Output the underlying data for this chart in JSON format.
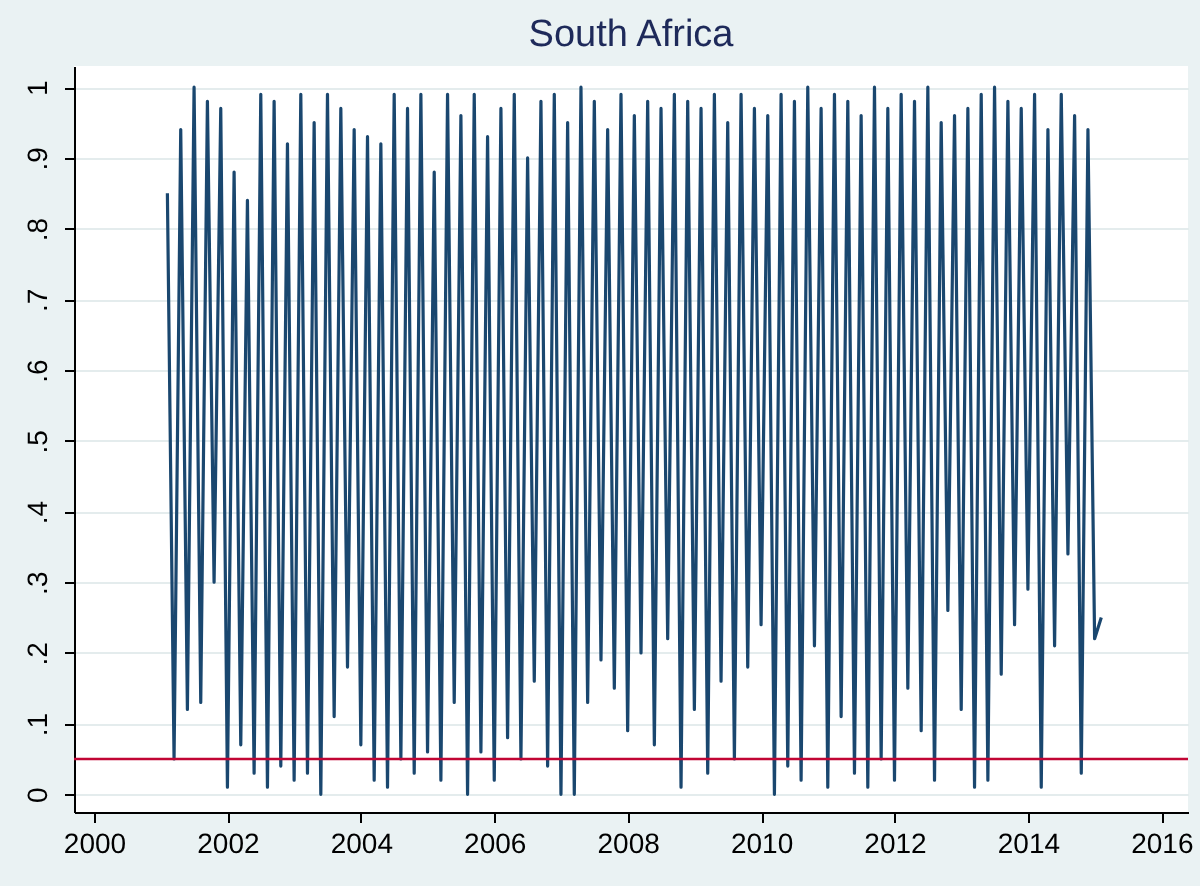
{
  "chart_data": {
    "type": "line",
    "title": "South Africa",
    "x": [
      2001.1,
      2001.2,
      2001.3,
      2001.4,
      2001.5,
      2001.6,
      2001.7,
      2001.8,
      2001.9,
      2002.0,
      2002.1,
      2002.2,
      2002.3,
      2002.4,
      2002.5,
      2002.6,
      2002.7,
      2002.8,
      2002.9,
      2003.0,
      2003.1,
      2003.2,
      2003.3,
      2003.4,
      2003.5,
      2003.6,
      2003.7,
      2003.8,
      2003.9,
      2004.0,
      2004.1,
      2004.2,
      2004.3,
      2004.4,
      2004.5,
      2004.6,
      2004.7,
      2004.8,
      2004.9,
      2005.0,
      2005.1,
      2005.2,
      2005.3,
      2005.4,
      2005.5,
      2005.6,
      2005.7,
      2005.8,
      2005.9,
      2006.0,
      2006.1,
      2006.2,
      2006.3,
      2006.4,
      2006.5,
      2006.6,
      2006.7,
      2006.8,
      2006.9,
      2007.0,
      2007.1,
      2007.2,
      2007.3,
      2007.4,
      2007.5,
      2007.6,
      2007.7,
      2007.8,
      2007.9,
      2008.0,
      2008.1,
      2008.2,
      2008.3,
      2008.4,
      2008.5,
      2008.6,
      2008.7,
      2008.8,
      2008.9,
      2009.0,
      2009.1,
      2009.2,
      2009.3,
      2009.4,
      2009.5,
      2009.6,
      2009.7,
      2009.8,
      2009.9,
      2010.0,
      2010.1,
      2010.2,
      2010.3,
      2010.4,
      2010.5,
      2010.6,
      2010.7,
      2010.8,
      2010.9,
      2011.0,
      2011.1,
      2011.2,
      2011.3,
      2011.4,
      2011.5,
      2011.6,
      2011.7,
      2011.8,
      2011.9,
      2012.0,
      2012.1,
      2012.2,
      2012.3,
      2012.4,
      2012.5,
      2012.6,
      2012.7,
      2012.8,
      2012.9,
      2013.0,
      2013.1,
      2013.2,
      2013.3,
      2013.4,
      2013.5,
      2013.6,
      2013.7,
      2013.8,
      2013.9,
      2014.0,
      2014.1,
      2014.2,
      2014.3,
      2014.4,
      2014.5,
      2014.6,
      2014.7,
      2014.8,
      2014.9,
      2015.0,
      2015.1
    ],
    "series": [
      {
        "color": "#1a476f",
        "values": [
          0.85,
          0.05,
          0.94,
          0.12,
          1.0,
          0.13,
          0.98,
          0.3,
          0.97,
          0.01,
          0.88,
          0.07,
          0.84,
          0.03,
          0.99,
          0.01,
          0.98,
          0.04,
          0.92,
          0.02,
          0.99,
          0.03,
          0.95,
          0.0,
          0.99,
          0.11,
          0.97,
          0.18,
          0.94,
          0.07,
          0.93,
          0.02,
          0.92,
          0.01,
          0.99,
          0.05,
          0.97,
          0.03,
          0.99,
          0.06,
          0.88,
          0.02,
          0.99,
          0.13,
          0.96,
          0.0,
          0.99,
          0.06,
          0.93,
          0.02,
          0.97,
          0.08,
          0.99,
          0.05,
          0.9,
          0.16,
          0.98,
          0.04,
          0.99,
          0.0,
          0.95,
          0.0,
          1.0,
          0.13,
          0.98,
          0.19,
          0.94,
          0.15,
          0.99,
          0.09,
          0.96,
          0.2,
          0.98,
          0.07,
          0.97,
          0.22,
          0.99,
          0.01,
          0.98,
          0.12,
          0.97,
          0.03,
          0.99,
          0.16,
          0.95,
          0.05,
          0.99,
          0.18,
          0.97,
          0.24,
          0.96,
          0.0,
          0.99,
          0.04,
          0.98,
          0.02,
          1.0,
          0.21,
          0.97,
          0.01,
          0.99,
          0.11,
          0.98,
          0.03,
          0.96,
          0.01,
          1.0,
          0.05,
          0.97,
          0.02,
          0.99,
          0.15,
          0.98,
          0.09,
          1.0,
          0.02,
          0.95,
          0.26,
          0.96,
          0.12,
          0.97,
          0.01,
          0.99,
          0.02,
          1.0,
          0.17,
          0.98,
          0.24,
          0.97,
          0.29,
          0.99,
          0.01,
          0.94,
          0.21,
          0.99,
          0.34,
          0.96,
          0.03,
          0.94,
          0.22,
          0.25
        ]
      }
    ],
    "xlim": [
      1999.7,
      2016.4
    ],
    "xticks": [
      2000,
      2002,
      2004,
      2006,
      2008,
      2010,
      2012,
      2014,
      2016
    ],
    "ylim": [
      -0.025,
      1.03
    ],
    "yticks": [
      {
        "value": 0,
        "label": "0"
      },
      {
        "value": 0.1,
        "label": ".1"
      },
      {
        "value": 0.2,
        "label": ".2"
      },
      {
        "value": 0.3,
        "label": ".3"
      },
      {
        "value": 0.4,
        "label": ".4"
      },
      {
        "value": 0.5,
        "label": ".5"
      },
      {
        "value": 0.6,
        "label": ".6"
      },
      {
        "value": 0.7,
        "label": ".7"
      },
      {
        "value": 0.8,
        "label": ".8"
      },
      {
        "value": 0.9,
        "label": ".9"
      },
      {
        "value": 1,
        "label": "1"
      }
    ],
    "ref_lines": [
      {
        "axis": "y",
        "value": 0.05,
        "color": "#c10534"
      }
    ],
    "grid": "y",
    "marker": "none",
    "line_style": "solid"
  }
}
